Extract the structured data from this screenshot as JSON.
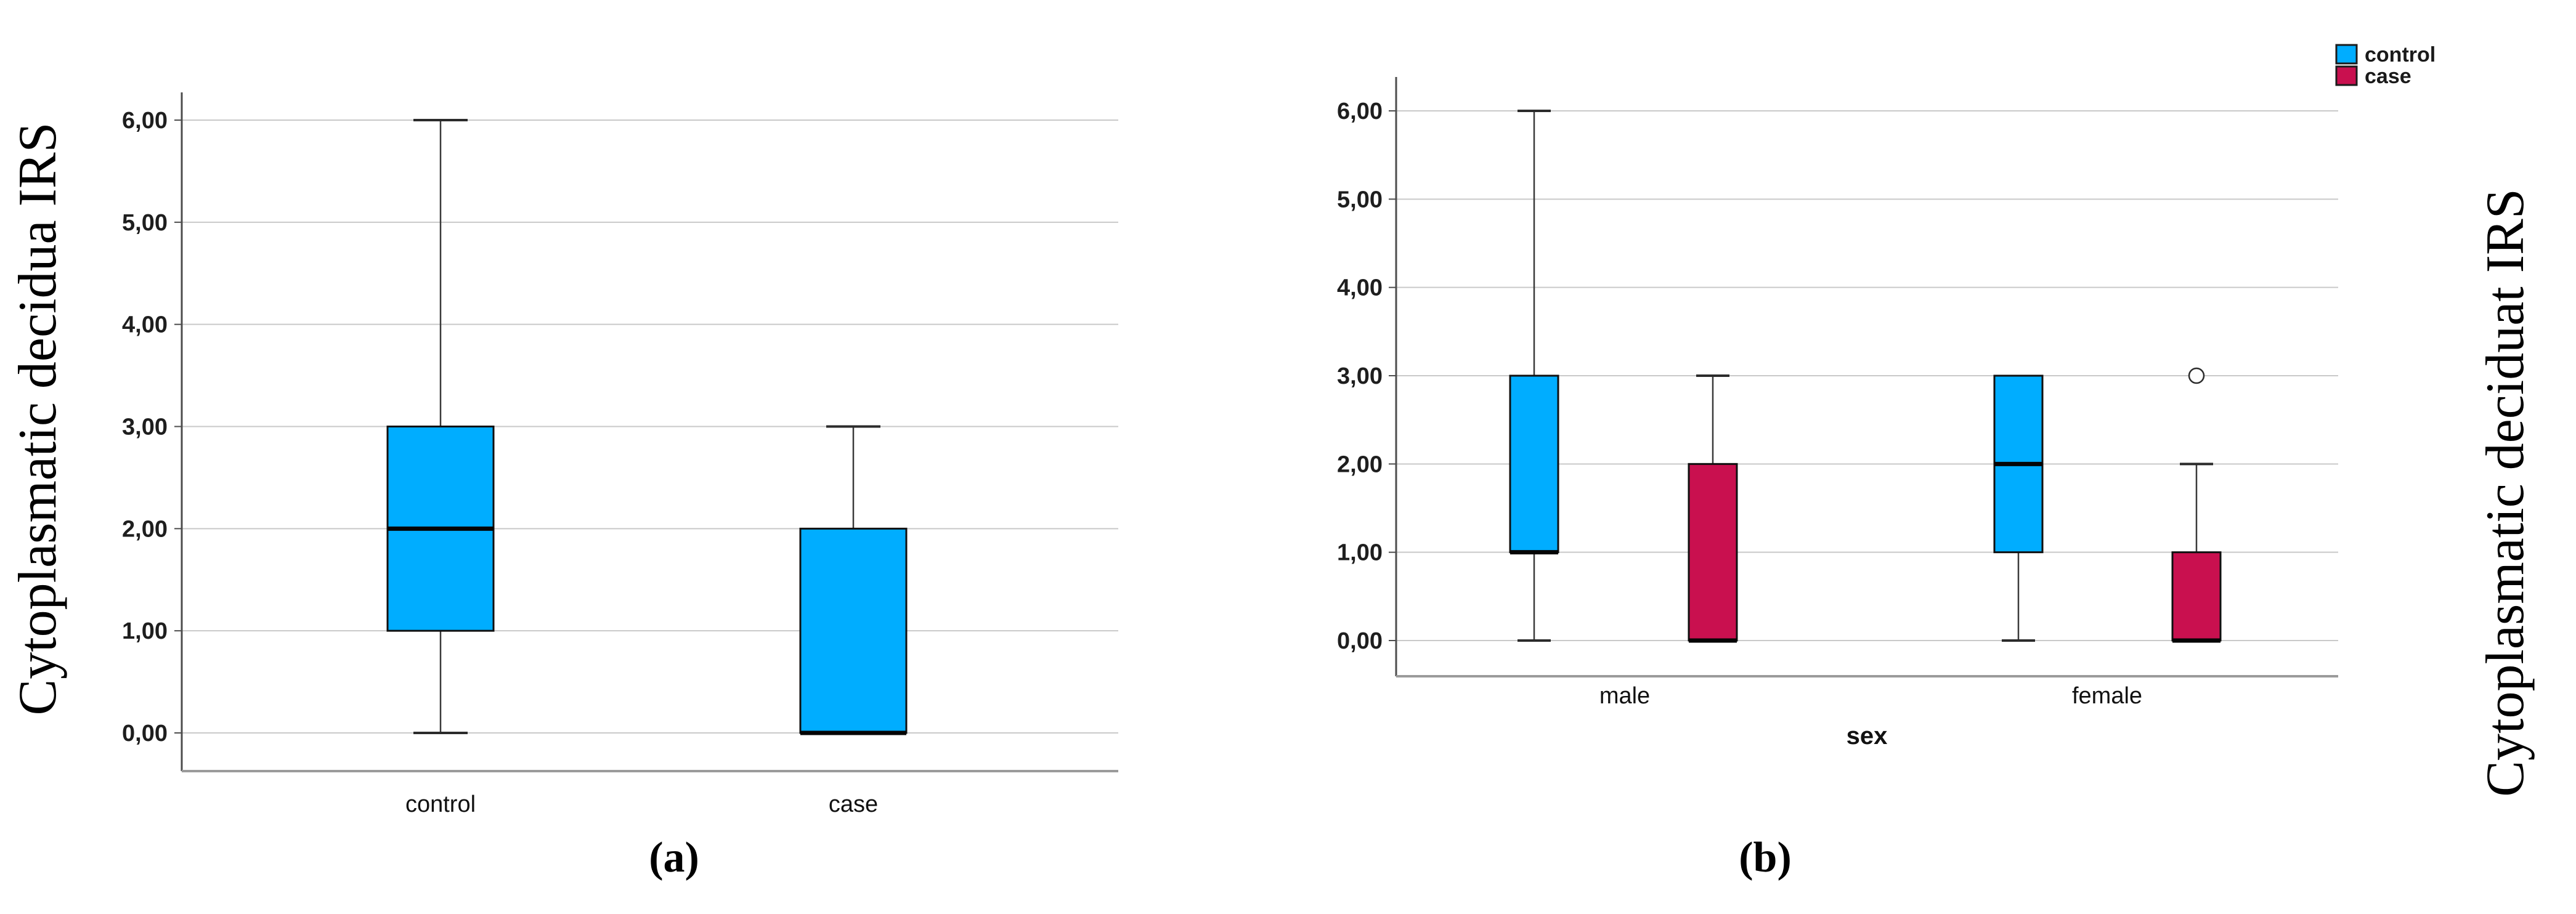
{
  "figure": {
    "background": "#ffffff",
    "panel_a_label": "(a)",
    "panel_b_label": "(b)"
  },
  "colors": {
    "control": "#00ADFF",
    "case": "#C9104F",
    "gridline": "#c9c9c9"
  },
  "chart_data": [
    {
      "id": "a",
      "type": "boxplot",
      "panel_label": "(a)",
      "ylabel": "Cytoplasmatic decidua IRS",
      "xlabel": "",
      "ylim": [
        0,
        6
      ],
      "grid": true,
      "ytick_labels": [
        "0,00",
        "1,00",
        "2,00",
        "3,00",
        "4,00",
        "5,00",
        "6,00"
      ],
      "ytick_values": [
        0,
        1,
        2,
        3,
        4,
        5,
        6
      ],
      "categories": [
        "control",
        "case"
      ],
      "boxes": [
        {
          "category": "control",
          "series": "control",
          "color": "#00ADFF",
          "stats": {
            "min": 0,
            "q1": 1,
            "median": 2,
            "q3": 3,
            "max": 6
          },
          "outliers": []
        },
        {
          "category": "case",
          "series": "case",
          "color": "#00ADFF",
          "stats": {
            "min": 0,
            "q1": 0,
            "median": 0,
            "q3": 2,
            "max": 3
          },
          "outliers": []
        }
      ]
    },
    {
      "id": "b",
      "type": "boxplot",
      "panel_label": "(b)",
      "ylabel": "Cytoplasmatic deciduat IRS",
      "xlabel": "sex",
      "ylim": [
        0,
        6
      ],
      "grid": true,
      "ytick_labels": [
        "0,00",
        "1,00",
        "2,00",
        "3,00",
        "4,00",
        "5,00",
        "6,00"
      ],
      "ytick_values": [
        0,
        1,
        2,
        3,
        4,
        5,
        6
      ],
      "categories": [
        "male",
        "female"
      ],
      "legend": [
        {
          "label": "control",
          "color": "#00ADFF"
        },
        {
          "label": "case",
          "color": "#C9104F"
        }
      ],
      "legend_position": "top-right",
      "boxes": [
        {
          "category": "male",
          "series": "control",
          "color": "#00ADFF",
          "stats": {
            "min": 0,
            "q1": 1,
            "median": 1,
            "q3": 3,
            "max": 6
          },
          "outliers": []
        },
        {
          "category": "male",
          "series": "case",
          "color": "#C9104F",
          "stats": {
            "min": 0,
            "q1": 0,
            "median": 0,
            "q3": 2,
            "max": 3
          },
          "outliers": []
        },
        {
          "category": "female",
          "series": "control",
          "color": "#00ADFF",
          "stats": {
            "min": 0,
            "q1": 1,
            "median": 2,
            "q3": 3,
            "max": 3
          },
          "outliers": []
        },
        {
          "category": "female",
          "series": "case",
          "color": "#C9104F",
          "stats": {
            "min": 0,
            "q1": 0,
            "median": 0,
            "q3": 1,
            "max": 2
          },
          "outliers": [
            3
          ]
        }
      ]
    }
  ]
}
